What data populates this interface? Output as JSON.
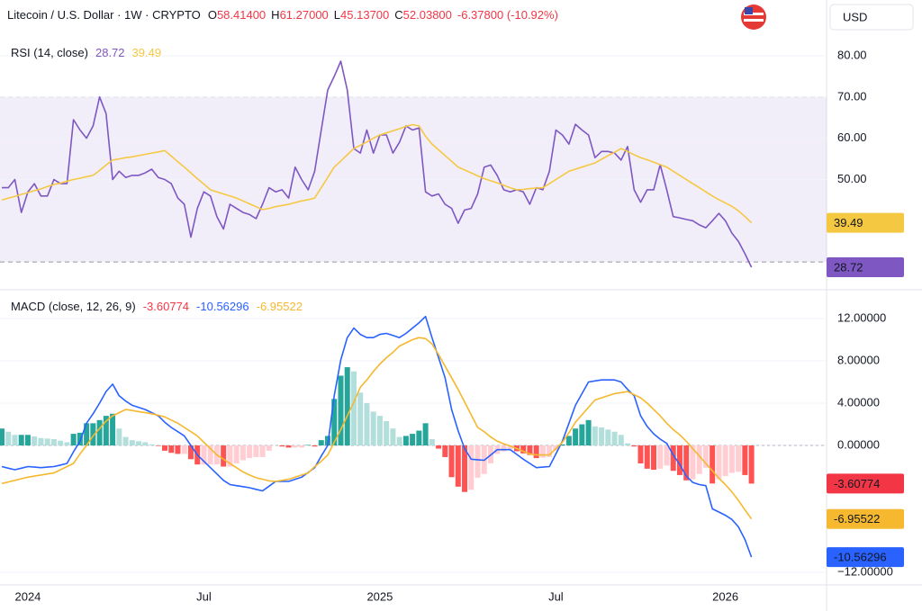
{
  "header": {
    "symbol": "Litecoin / U.S. Dollar · 1W · CRYPTO",
    "ohlc": [
      {
        "label": "O",
        "value": "58.41400"
      },
      {
        "label": "H",
        "value": "61.27000"
      },
      {
        "label": "L",
        "value": "45.13700"
      },
      {
        "label": "C",
        "value": "52.03800"
      }
    ],
    "change": "-6.37800 (-10.92%)",
    "currency": "USD"
  },
  "chart_data": [
    {
      "type": "line",
      "title": "RSI (14, close)",
      "ylim": [
        23.7,
        84.8
      ],
      "yticks": [
        {
          "value": 80,
          "label": "80.00"
        },
        {
          "value": 70,
          "label": "70.00"
        },
        {
          "value": 60,
          "label": "60.00"
        },
        {
          "value": 50,
          "label": "50.00"
        }
      ],
      "grid": true,
      "band": [
        30,
        70
      ],
      "midline": 50,
      "band_color": "rgba(126,87,194,0.10)",
      "badges": true,
      "series": [
        {
          "color": "#7e57c2",
          "badge_text": "#ffffff",
          "values": [
            48,
            48,
            50,
            42,
            47,
            49,
            46,
            46,
            50,
            49,
            49,
            64.5,
            62,
            60,
            63,
            70,
            66,
            50,
            52,
            50.5,
            51,
            51,
            51.6,
            52.5,
            50.5,
            50,
            49,
            45.5,
            44,
            36,
            43,
            47,
            46,
            41,
            38,
            44,
            43,
            42,
            41.5,
            40.5,
            44,
            48,
            47,
            47.5,
            45.5,
            53,
            50,
            47.5,
            52,
            62,
            71.7,
            75,
            78.7,
            71.7,
            57.5,
            56.4,
            62,
            56.4,
            60.8,
            60.8,
            56.4,
            59,
            63,
            62,
            62.5,
            47,
            46,
            46.5,
            44,
            43,
            39.4,
            42.6,
            43,
            46.5,
            53,
            53.5,
            51,
            47.5,
            47,
            47.5,
            47,
            44,
            48,
            47.5,
            52,
            62,
            60.8,
            58.6,
            63.4,
            62,
            60.8,
            55.3,
            56.8,
            56.8,
            56.4,
            54.7,
            58,
            47.5,
            44.5,
            47.5,
            47.5,
            53.6,
            47.5,
            41,
            40.7,
            40.3,
            40,
            39,
            38.3,
            40,
            41.8,
            40,
            37,
            35,
            32,
            28.72
          ]
        },
        {
          "color": "#f5c842",
          "badge_text": "#131722",
          "values": [
            45,
            45.5,
            45.9,
            46.4,
            46.8,
            47.3,
            47.7,
            48.3,
            48.8,
            49.1,
            49.6,
            50,
            50.3,
            50.7,
            51,
            52.2,
            53.5,
            54.7,
            55,
            55.3,
            55.5,
            55.8,
            56.1,
            56.4,
            56.7,
            57,
            55.7,
            54.3,
            53,
            51.6,
            50.2,
            48.9,
            47.5,
            47,
            46.5,
            46,
            45.5,
            44.8,
            44.1,
            43.4,
            42.7,
            43,
            43.4,
            43.7,
            44,
            44.4,
            44.8,
            45.1,
            45.5,
            48,
            50.5,
            53,
            54.5,
            56,
            57.5,
            58.3,
            59.1,
            60,
            60.8,
            61.3,
            61.8,
            62.3,
            62.9,
            63.3,
            63,
            60.5,
            58.6,
            57.2,
            55.8,
            54.4,
            53,
            52.3,
            51.6,
            50.9,
            50.2,
            49.7,
            49.2,
            48.6,
            48,
            47.5,
            47.6,
            47.8,
            47.9,
            48,
            49,
            50,
            51,
            52,
            52.5,
            53,
            53.5,
            54,
            54.9,
            55.8,
            56.6,
            57.5,
            56.8,
            56,
            55.3,
            54.8,
            54.2,
            53.6,
            53,
            52,
            51,
            50,
            49,
            48,
            47,
            46,
            45.1,
            44.3,
            43.5,
            42.4,
            41,
            39.49
          ]
        }
      ]
    },
    {
      "type": "combo",
      "title": "MACD (close, 12, 26, 9)",
      "ylim": [
        -13.19,
        14.47
      ],
      "yticks": [
        {
          "value": 12,
          "label": "12.00000"
        },
        {
          "value": 8,
          "label": "8.00000"
        },
        {
          "value": 4,
          "label": "4.00000"
        },
        {
          "value": 0,
          "label": "0.00000"
        },
        {
          "value": -12,
          "label": "−12.00000"
        }
      ],
      "grid": true,
      "zero_line": true,
      "badges": true,
      "categories": [
        null,
        null,
        null,
        null,
        "2024",
        null,
        null,
        null,
        null,
        null,
        null,
        null,
        null,
        null,
        null,
        null,
        null,
        null,
        null,
        null,
        null,
        null,
        null,
        null,
        null,
        null,
        null,
        null,
        null,
        null,
        null,
        "Jul",
        null,
        null,
        null,
        null,
        null,
        null,
        null,
        null,
        null,
        null,
        null,
        null,
        null,
        null,
        null,
        null,
        null,
        null,
        null,
        null,
        null,
        null,
        null,
        null,
        null,
        null,
        "2025",
        null,
        null,
        null,
        null,
        null,
        null,
        null,
        null,
        null,
        null,
        null,
        null,
        null,
        null,
        null,
        null,
        null,
        null,
        null,
        null,
        null,
        null,
        null,
        null,
        null,
        null,
        "Jul",
        null,
        null,
        null,
        null,
        null,
        null,
        null,
        null,
        null,
        null,
        null,
        null,
        null,
        null,
        null,
        null,
        null,
        null,
        null,
        null,
        null,
        null,
        null,
        null,
        null,
        "2026",
        null,
        null,
        null,
        null
      ],
      "series": [
        {
          "type": "bar",
          "colors": [
            "#26a69a",
            "#b2dfdb",
            "#ffcdd2",
            "#ff5252"
          ],
          "color": "#f23645",
          "badge_text": "#ffffff",
          "values": [
            1.6,
            1.3,
            1.0,
            1.0,
            1.0,
            0.85,
            0.7,
            0.65,
            0.6,
            0.45,
            0.3,
            1.1,
            1.2,
            2.1,
            2.1,
            2.4,
            2.8,
            3.0,
            1.6,
            0.8,
            0.5,
            0.4,
            0.3,
            0.1,
            -0.05,
            -0.5,
            -0.7,
            -0.8,
            -0.8,
            -1.3,
            -1.8,
            -1.8,
            -1.8,
            -1.8,
            -2.0,
            -2.0,
            -1.7,
            -1.4,
            -1.2,
            -1.1,
            -1.1,
            -0.5,
            0,
            -0.1,
            -0.2,
            -0.2,
            -0.2,
            0.05,
            -0.1,
            0.5,
            0.9,
            4.4,
            6.6,
            7.4,
            7.0,
            5.0,
            4.0,
            3.2,
            2.8,
            2.3,
            1.6,
            0.8,
            0.9,
            1.1,
            1.4,
            2.1,
            0.6,
            -0.3,
            -1.1,
            -3.0,
            -3.9,
            -4.4,
            -4.2,
            -3.05,
            -2.7,
            -1.7,
            -0.8,
            -0.55,
            -0.35,
            -0.55,
            -0.75,
            -0.9,
            -1.2,
            -1.15,
            -1.1,
            -0.5,
            0.1,
            0.9,
            1.6,
            2.0,
            2.4,
            1.8,
            1.7,
            1.5,
            1.3,
            1.0,
            0.2,
            -0.1,
            -1.7,
            -2.2,
            -2.3,
            -2.2,
            -1.9,
            -2.4,
            -2.8,
            -3.3,
            -3.2,
            -2.7,
            -2.1,
            -3.6,
            -3.2,
            -2.9,
            -2.6,
            -2.5,
            -2.8,
            -3.60774
          ]
        },
        {
          "type": "line",
          "color": "#2962ff",
          "badge_text": "#ffffff",
          "values": [
            -2,
            -2.15,
            -2.3,
            -2.15,
            -2,
            -2.05,
            -2.1,
            -2.05,
            -2,
            -1.85,
            -1.7,
            -0.6,
            0.4,
            2.1,
            3,
            4,
            5.1,
            5.8,
            4.7,
            4.2,
            3.8,
            3.6,
            3.4,
            3.1,
            2.8,
            2.2,
            1.7,
            1.3,
            0.9,
            0,
            -0.9,
            -1.5,
            -2.1,
            -2.7,
            -3.3,
            -3.7,
            -3.8,
            -3.9,
            -4,
            -4.15,
            -4.3,
            -3.85,
            -3.4,
            -3.4,
            -3.4,
            -3.2,
            -3,
            -2.55,
            -2.1,
            -1,
            0,
            4.7,
            8.1,
            10.2,
            11.1,
            10.5,
            10.2,
            10.2,
            10.5,
            10.6,
            10.4,
            10.2,
            10.6,
            11.1,
            11.6,
            12.2,
            10.2,
            8.3,
            6.4,
            3.4,
            1.4,
            -0.3,
            -1.3,
            -1.35,
            -1.4,
            -0.9,
            -0.4,
            -0.4,
            -0.4,
            -0.85,
            -1.3,
            -1.7,
            -2.1,
            -2.05,
            -2,
            -0.8,
            0.4,
            2.1,
            3.8,
            4.9,
            6,
            6.1,
            6.2,
            6.2,
            6.2,
            6,
            5.3,
            4.7,
            2.8,
            1.8,
            1.1,
            0.6,
            0.2,
            -0.9,
            -1.8,
            -2.9,
            -3.5,
            -3.7,
            -3.8,
            -6,
            -6.3,
            -6.6,
            -7,
            -7.7,
            -8.9,
            -10.56296
          ]
        },
        {
          "type": "line",
          "color": "#f5b82e",
          "badge_text": "#131722",
          "values": [
            -3.6,
            -3.45,
            -3.3,
            -3.15,
            -3,
            -2.9,
            -2.8,
            -2.7,
            -2.6,
            -2.3,
            -2,
            -1.7,
            -0.8,
            0,
            0.9,
            1.6,
            2.3,
            2.8,
            3.1,
            3.4,
            3.3,
            3.2,
            3.1,
            3,
            2.85,
            2.7,
            2.4,
            2.1,
            1.7,
            1.3,
            0.9,
            0.3,
            -0.3,
            -0.9,
            -1.3,
            -1.7,
            -2.1,
            -2.5,
            -2.8,
            -3.05,
            -3.2,
            -3.35,
            -3.4,
            -3.3,
            -3.2,
            -3,
            -2.8,
            -2.6,
            -2,
            -1.5,
            -0.9,
            0.3,
            1.5,
            2.8,
            4.1,
            5.5,
            6.2,
            7,
            7.7,
            8.3,
            8.8,
            9.4,
            9.7,
            10,
            10.2,
            10.1,
            9.6,
            8.6,
            7.5,
            6.4,
            5.3,
            4.1,
            2.9,
            1.7,
            1.3,
            0.8,
            0.4,
            0.15,
            -0.05,
            -0.3,
            -0.55,
            -0.8,
            -0.9,
            -0.9,
            -0.9,
            -0.3,
            0.3,
            1.2,
            2.2,
            2.9,
            3.6,
            4.3,
            4.5,
            4.7,
            4.9,
            5,
            5.1,
            4.8,
            4.5,
            4,
            3.4,
            2.8,
            2.1,
            1.5,
            1,
            0.4,
            -0.3,
            -1,
            -1.7,
            -2.4,
            -3.1,
            -3.7,
            -4.4,
            -5.2,
            -6.1,
            -6.95522
          ]
        }
      ]
    }
  ]
}
